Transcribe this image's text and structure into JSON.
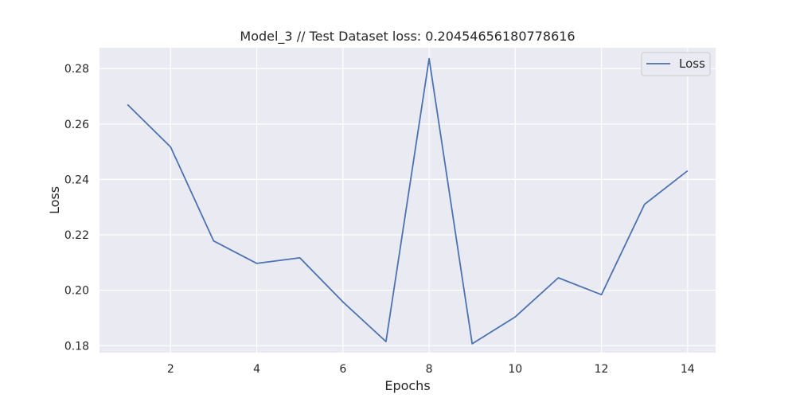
{
  "chart_data": {
    "type": "line",
    "title": "Model_3 // Test Dataset loss: 0.20454656180778616",
    "xlabel": "Epochs",
    "ylabel": "Loss",
    "xlim": [
      0.35,
      14.65
    ],
    "ylim": [
      0.1775,
      0.2875
    ],
    "x_ticks": [
      2,
      4,
      6,
      8,
      10,
      12,
      14
    ],
    "y_ticks": [
      0.18,
      0.2,
      0.22,
      0.24,
      0.26,
      0.28
    ],
    "x_tick_labels": [
      "2",
      "4",
      "6",
      "8",
      "10",
      "12",
      "14"
    ],
    "y_tick_labels": [
      "0.18",
      "0.20",
      "0.22",
      "0.24",
      "0.26",
      "0.28"
    ],
    "grid": true,
    "legend_position": "top-right",
    "series": [
      {
        "name": "Loss",
        "color": "#4c72b0",
        "x": [
          1,
          2,
          3,
          4,
          5,
          6,
          7,
          8,
          9,
          10,
          11,
          12,
          13,
          14
        ],
        "values": [
          0.267,
          0.2517,
          0.2178,
          0.2097,
          0.2117,
          0.1958,
          0.1815,
          0.2836,
          0.1807,
          0.1904,
          0.2045,
          0.1984,
          0.231,
          0.2431
        ]
      }
    ],
    "colors": {
      "plot_background": "#eaeaf2",
      "grid": "#ffffff",
      "text": "#262626"
    }
  }
}
